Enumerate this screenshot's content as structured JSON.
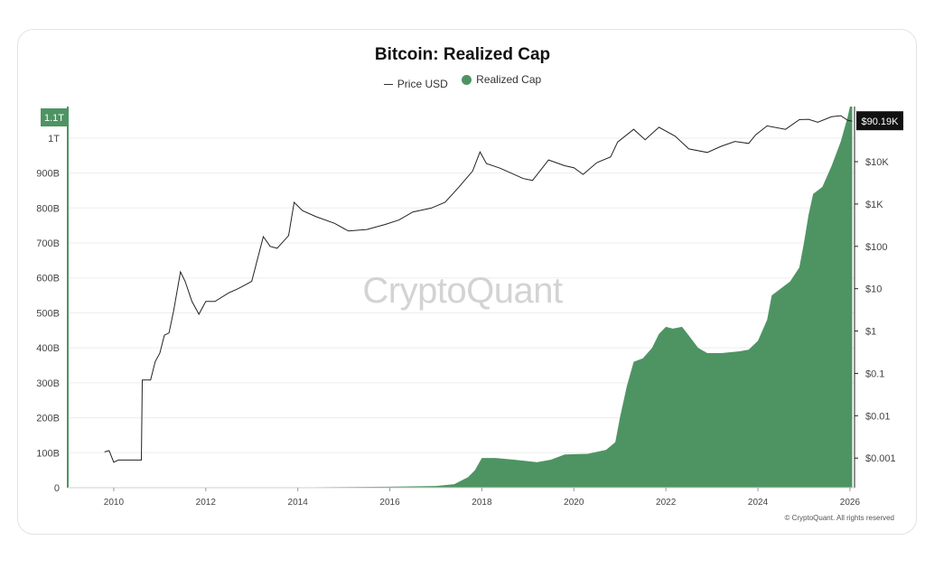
{
  "chart_data": {
    "type": "area",
    "title": "Bitcoin: Realized Cap",
    "legend": [
      "Price USD",
      "Realized Cap"
    ],
    "watermark": "CryptoQuant",
    "copyright": "© CryptoQuant. All rights reserved",
    "colors": {
      "realized_cap": "#4e9463",
      "price": "#222222",
      "grid": "#eeeeee"
    },
    "x_ticks": [
      "2010",
      "2012",
      "2014",
      "2016",
      "2018",
      "2020",
      "2022",
      "2024",
      "2026"
    ],
    "x_range": [
      2009,
      2026.1
    ],
    "left_axis": {
      "ticks": [
        "0",
        "100B",
        "200B",
        "300B",
        "400B",
        "500B",
        "600B",
        "700B",
        "800B",
        "900B",
        "1T"
      ],
      "values": [
        0,
        100,
        200,
        300,
        400,
        500,
        600,
        700,
        800,
        900,
        1000
      ],
      "range": [
        0,
        1090
      ],
      "current_label": "1.1T",
      "scale": "linear"
    },
    "right_axis": {
      "ticks": [
        "$10K",
        "$1K",
        "$100",
        "$10",
        "$1",
        "$0.1",
        "$0.01",
        "$0.001"
      ],
      "values": [
        10000,
        1000,
        100,
        10,
        1,
        0.1,
        0.01,
        0.001
      ],
      "range": [
        0.0002,
        200000
      ],
      "current_label": "$90.19K",
      "scale": "log"
    },
    "series": [
      {
        "name": "Realized Cap",
        "axis": "left",
        "unit": "billion USD",
        "points": [
          [
            2013.8,
            0
          ],
          [
            2014,
            1
          ],
          [
            2015,
            2
          ],
          [
            2016,
            3
          ],
          [
            2017,
            5
          ],
          [
            2017.4,
            10
          ],
          [
            2017.7,
            30
          ],
          [
            2017.85,
            50
          ],
          [
            2018,
            85
          ],
          [
            2018.3,
            85
          ],
          [
            2018.7,
            80
          ],
          [
            2019.2,
            73
          ],
          [
            2019.5,
            80
          ],
          [
            2019.8,
            95
          ],
          [
            2020.3,
            97
          ],
          [
            2020.7,
            108
          ],
          [
            2020.9,
            130
          ],
          [
            2021.0,
            200
          ],
          [
            2021.15,
            290
          ],
          [
            2021.3,
            360
          ],
          [
            2021.5,
            370
          ],
          [
            2021.7,
            400
          ],
          [
            2021.85,
            440
          ],
          [
            2022.0,
            460
          ],
          [
            2022.15,
            455
          ],
          [
            2022.35,
            460
          ],
          [
            2022.5,
            435
          ],
          [
            2022.7,
            400
          ],
          [
            2022.9,
            385
          ],
          [
            2023.2,
            385
          ],
          [
            2023.6,
            390
          ],
          [
            2023.8,
            395
          ],
          [
            2024.0,
            420
          ],
          [
            2024.2,
            480
          ],
          [
            2024.3,
            550
          ],
          [
            2024.5,
            570
          ],
          [
            2024.7,
            590
          ],
          [
            2024.9,
            630
          ],
          [
            2025.0,
            700
          ],
          [
            2025.1,
            780
          ],
          [
            2025.2,
            840
          ],
          [
            2025.4,
            860
          ],
          [
            2025.6,
            920
          ],
          [
            2025.8,
            990
          ],
          [
            2025.95,
            1060
          ],
          [
            2026.0,
            1100
          ],
          [
            2026.05,
            1090
          ]
        ]
      },
      {
        "name": "Price USD",
        "axis": "right",
        "unit": "USD",
        "points": [
          [
            2009.8,
            0.0014
          ],
          [
            2009.9,
            0.0015
          ],
          [
            2010.0,
            0.0008
          ],
          [
            2010.1,
            0.0009
          ],
          [
            2010.6,
            0.0009
          ],
          [
            2010.62,
            0.07
          ],
          [
            2010.8,
            0.07
          ],
          [
            2010.9,
            0.19
          ],
          [
            2011.0,
            0.3
          ],
          [
            2011.1,
            0.8
          ],
          [
            2011.2,
            0.9
          ],
          [
            2011.3,
            3
          ],
          [
            2011.45,
            25
          ],
          [
            2011.55,
            15
          ],
          [
            2011.7,
            5
          ],
          [
            2011.85,
            2.5
          ],
          [
            2012.0,
            5
          ],
          [
            2012.2,
            5
          ],
          [
            2012.5,
            8
          ],
          [
            2012.7,
            10
          ],
          [
            2012.9,
            13
          ],
          [
            2013.0,
            15
          ],
          [
            2013.25,
            170
          ],
          [
            2013.4,
            100
          ],
          [
            2013.55,
            90
          ],
          [
            2013.8,
            180
          ],
          [
            2013.92,
            1100
          ],
          [
            2014.1,
            700
          ],
          [
            2014.4,
            500
          ],
          [
            2014.8,
            350
          ],
          [
            2015.1,
            230
          ],
          [
            2015.5,
            250
          ],
          [
            2015.9,
            330
          ],
          [
            2016.2,
            420
          ],
          [
            2016.5,
            650
          ],
          [
            2016.9,
            800
          ],
          [
            2017.2,
            1100
          ],
          [
            2017.5,
            2500
          ],
          [
            2017.8,
            6000
          ],
          [
            2017.96,
            17000
          ],
          [
            2018.1,
            9000
          ],
          [
            2018.4,
            7000
          ],
          [
            2018.9,
            4000
          ],
          [
            2019.1,
            3600
          ],
          [
            2019.45,
            11000
          ],
          [
            2019.8,
            8000
          ],
          [
            2020.0,
            7200
          ],
          [
            2020.2,
            5000
          ],
          [
            2020.5,
            9500
          ],
          [
            2020.8,
            13000
          ],
          [
            2020.95,
            29000
          ],
          [
            2021.3,
            58000
          ],
          [
            2021.55,
            33000
          ],
          [
            2021.85,
            65000
          ],
          [
            2022.2,
            40000
          ],
          [
            2022.5,
            20000
          ],
          [
            2022.9,
            16500
          ],
          [
            2023.2,
            23000
          ],
          [
            2023.5,
            30000
          ],
          [
            2023.8,
            27000
          ],
          [
            2023.95,
            43000
          ],
          [
            2024.2,
            70000
          ],
          [
            2024.6,
            58000
          ],
          [
            2024.9,
            98000
          ],
          [
            2025.1,
            100000
          ],
          [
            2025.3,
            85000
          ],
          [
            2025.6,
            115000
          ],
          [
            2025.8,
            122000
          ],
          [
            2025.95,
            95000
          ],
          [
            2026.05,
            90190
          ]
        ]
      }
    ],
    "grid": true
  }
}
